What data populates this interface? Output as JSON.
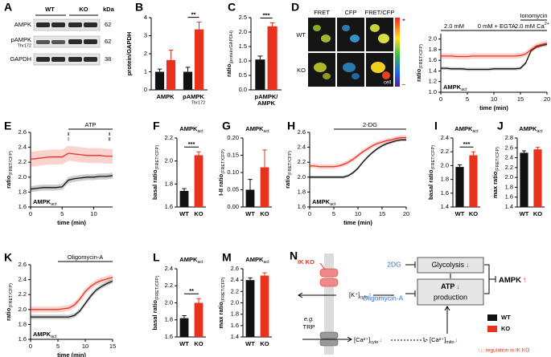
{
  "blot": {
    "panel": "A",
    "groups": [
      "WT",
      "KO"
    ],
    "unit": "kDa",
    "rows": [
      {
        "label": "AMPK",
        "kda": 62
      },
      {
        "label": "pAMPK",
        "sub": "Thr172",
        "kda": 62
      },
      {
        "label": "GAPDH",
        "kda": 38
      }
    ]
  },
  "images": {
    "panel": "D",
    "columns": [
      "FRET",
      "CFP",
      "FRET/CFP"
    ],
    "rows": [
      "WT",
      "KO"
    ],
    "scale": [
      "+",
      "–"
    ],
    "note": "cell"
  },
  "chart_data": [
    {
      "type": "bar",
      "panel": "B",
      "ylabel": "protein/GAPDH",
      "categories": [
        "AMPK",
        "pAMPK"
      ],
      "category_sub": {
        "1": "Thr172"
      },
      "series": [
        {
          "color": "#111111",
          "values": [
            1.0,
            1.0
          ],
          "errors": [
            0.15,
            0.25
          ]
        },
        {
          "color": "#e8321e",
          "values": [
            1.65,
            3.35
          ],
          "errors": [
            0.55,
            0.4
          ]
        }
      ],
      "significance": {
        "1": "**"
      },
      "ylim": [
        0,
        4
      ],
      "yticks": [
        0,
        1,
        2,
        3,
        4
      ]
    },
    {
      "type": "bar",
      "panel": "C",
      "ylabel": "ratio",
      "ylabel_sub": "(protein/GAPDH)",
      "categories": [
        "pAMPK/ AMPK"
      ],
      "series": [
        {
          "color": "#111111",
          "values": [
            1.05
          ],
          "errors": [
            0.12
          ]
        },
        {
          "color": "#e8321e",
          "values": [
            2.2
          ],
          "errors": [
            0.12
          ]
        }
      ],
      "significance": {
        "0": "***"
      },
      "ylim": [
        0,
        2.5
      ],
      "yticks": [
        {
          "value": 0,
          "label": "0.0"
        },
        0.5,
        {
          "value": 1,
          "label": "1.0"
        },
        1.5,
        {
          "value": 2,
          "label": "2.0"
        },
        2.5
      ]
    },
    {
      "type": "line",
      "ylabel": "ratio",
      "ylabel_sub": "(FRET/CFP)",
      "xlabel": "time (min)",
      "tag": "AMPK",
      "tag_sub": "act",
      "x": [
        0,
        1,
        2,
        3,
        4,
        5,
        6,
        7,
        8,
        9,
        10,
        11,
        12,
        13,
        14,
        15,
        16,
        17,
        18,
        19,
        20
      ],
      "series": [
        {
          "color": "#111111",
          "values": [
            1.45,
            1.45,
            1.44,
            1.44,
            1.44,
            1.43,
            1.43,
            1.43,
            1.43,
            1.43,
            1.44,
            1.44,
            1.44,
            1.44,
            1.44,
            1.45,
            1.55,
            1.78,
            1.85,
            1.88,
            1.9
          ],
          "errors": [
            0.03,
            0.03,
            0.03,
            0.03,
            0.03,
            0.03,
            0.03,
            0.03,
            0.03,
            0.03,
            0.03,
            0.03,
            0.03,
            0.03,
            0.03,
            0.03,
            0.03,
            0.03,
            0.03,
            0.03,
            0.03
          ]
        },
        {
          "color": "#e8321e",
          "values": [
            1.68,
            1.68,
            1.68,
            1.67,
            1.67,
            1.67,
            1.68,
            1.68,
            1.68,
            1.68,
            1.68,
            1.68,
            1.68,
            1.68,
            1.68,
            1.69,
            1.72,
            1.8,
            1.87,
            1.9,
            1.92
          ],
          "errors": [
            0.05,
            0.05,
            0.05,
            0.05,
            0.05,
            0.05,
            0.05,
            0.05,
            0.05,
            0.05,
            0.05,
            0.05,
            0.05,
            0.05,
            0.05,
            0.05,
            0.05,
            0.05,
            0.05,
            0.05,
            0.05
          ]
        }
      ],
      "annotations": [
        {
          "text": "2.0 mM",
          "start": 0,
          "end": 5
        },
        {
          "text": "0 mM + EGTA",
          "start": 5,
          "end": 16
        },
        {
          "text": "Ionomycin",
          "start": 15,
          "end": 20
        },
        {
          "text": "2.0 mM Ca",
          "sup": "2+",
          "start": 16,
          "end": 20
        }
      ],
      "xlim": [
        0,
        20
      ],
      "xticks": [
        0,
        5,
        10,
        15,
        20
      ],
      "ylim": [
        1,
        2.1
      ],
      "yticks": [
        {
          "value": 1,
          "label": "1.0"
        },
        1.2,
        1.4,
        1.6,
        1.8,
        {
          "value": 2,
          "label": "2.0"
        }
      ]
    },
    {
      "type": "line",
      "panel": "E",
      "ylabel": "ratio",
      "ylabel_sub": "(FRET/CFP)",
      "xlabel": "time (min)",
      "tag": "AMPK",
      "tag_sub": "act",
      "x": [
        0,
        1,
        2,
        3,
        4,
        5,
        6,
        7,
        8,
        9,
        10,
        11,
        12,
        13
      ],
      "series": [
        {
          "color": "#111111",
          "values": [
            1.84,
            1.85,
            1.86,
            1.86,
            1.86,
            1.87,
            1.96,
            1.98,
            1.99,
            2.0,
            2.0,
            2.01,
            2.01,
            2.02
          ],
          "errors": [
            0.04,
            0.04,
            0.04,
            0.04,
            0.04,
            0.04,
            0.04,
            0.04,
            0.04,
            0.04,
            0.04,
            0.04,
            0.04,
            0.04
          ]
        },
        {
          "color": "#e8321e",
          "values": [
            2.24,
            2.25,
            2.26,
            2.27,
            2.27,
            2.27,
            2.32,
            2.31,
            2.3,
            2.29,
            2.29,
            2.29,
            2.28,
            2.28
          ],
          "errors": [
            0.1,
            0.1,
            0.1,
            0.1,
            0.1,
            0.1,
            0.1,
            0.1,
            0.1,
            0.1,
            0.1,
            0.1,
            0.1,
            0.1
          ]
        }
      ],
      "annotations": [
        {
          "text": "ATP",
          "start": 6,
          "end": 13,
          "marks": [
            {
              "text": "I",
              "x": 6
            },
            {
              "text": "II",
              "x": 12.5
            }
          ]
        }
      ],
      "xlim": [
        0,
        13
      ],
      "xticks": [
        0,
        5,
        10
      ],
      "ylim": [
        1.6,
        2.6
      ],
      "yticks": [
        1.6,
        1.8,
        {
          "value": 2,
          "label": "2.0"
        },
        2.2,
        2.4,
        2.6
      ]
    },
    {
      "type": "bar",
      "panel": "F",
      "tag": "AMPK",
      "tag_sub": "act",
      "ylabel": "basal ratio",
      "ylabel_sub": "(FRET/CFP)",
      "categories": [
        "WT",
        "KO"
      ],
      "series": [
        {
          "colors": [
            "#111111",
            "#e8321e"
          ],
          "values": [
            1.74,
            2.05
          ],
          "errors": [
            0.02,
            0.03
          ]
        }
      ],
      "significance": "***",
      "ylim": [
        1.6,
        2.2
      ],
      "yticks": [
        1.6,
        1.8,
        {
          "value": 2,
          "label": "2.0"
        },
        2.2
      ]
    },
    {
      "type": "bar",
      "panel": "G",
      "tag": "AMPK",
      "tag_sub": "act",
      "ylabel": "I-II ratio",
      "ylabel_sub": "(FRET/CFP)",
      "categories": [
        "WT",
        "KO"
      ],
      "series": [
        {
          "colors": [
            "#111111",
            "#e8321e"
          ],
          "values": [
            0.05,
            0.115
          ],
          "errors": [
            0.03,
            0.05
          ]
        }
      ],
      "ylim": [
        0,
        0.2
      ],
      "yticks": [
        {
          "value": 0,
          "label": "0.00"
        },
        0.05,
        {
          "value": 0.1,
          "label": "0.10"
        },
        0.15,
        {
          "value": 0.2,
          "label": "0.20"
        }
      ]
    },
    {
      "type": "line",
      "panel": "H",
      "ylabel": "ratio",
      "ylabel_sub": "(FRET/CFP)",
      "xlabel": "time (min)",
      "tag": "AMPK",
      "tag_sub": "act",
      "x": [
        0,
        1,
        2,
        3,
        4,
        5,
        6,
        7,
        8,
        9,
        10,
        11,
        12,
        13,
        14,
        15,
        16,
        17,
        18,
        19,
        20
      ],
      "series": [
        {
          "color": "#111111",
          "values": [
            2.0,
            2.0,
            2.0,
            2.0,
            2.0,
            2.0,
            2.0,
            2.0,
            2.02,
            2.06,
            2.12,
            2.2,
            2.27,
            2.33,
            2.38,
            2.42,
            2.45,
            2.47,
            2.49,
            2.5,
            2.5
          ],
          "errors": [
            0.02,
            0.02,
            0.02,
            0.02,
            0.02,
            0.02,
            0.02,
            0.02,
            0.02,
            0.02,
            0.02,
            0.02,
            0.02,
            0.02,
            0.02,
            0.02,
            0.02,
            0.02,
            0.02,
            0.02,
            0.02
          ]
        },
        {
          "color": "#e8321e",
          "values": [
            2.15,
            2.15,
            2.14,
            2.14,
            2.14,
            2.14,
            2.15,
            2.17,
            2.2,
            2.24,
            2.29,
            2.34,
            2.38,
            2.42,
            2.45,
            2.47,
            2.49,
            2.5,
            2.52,
            2.53,
            2.53
          ],
          "errors": [
            0.03,
            0.03,
            0.03,
            0.03,
            0.03,
            0.03,
            0.03,
            0.03,
            0.03,
            0.03,
            0.03,
            0.03,
            0.03,
            0.03,
            0.03,
            0.03,
            0.03,
            0.03,
            0.03,
            0.03,
            0.03
          ]
        }
      ],
      "annotations": [
        {
          "text": "2-DG",
          "start": 5,
          "end": 20
        }
      ],
      "xlim": [
        0,
        20
      ],
      "xticks": [
        0,
        5,
        10,
        15,
        20
      ],
      "ylim": [
        1.6,
        2.6
      ],
      "yticks": [
        1.6,
        1.8,
        {
          "value": 2,
          "label": "2.0"
        },
        2.2,
        2.4,
        2.6
      ]
    },
    {
      "type": "bar",
      "panel": "I",
      "tag": "AMPK",
      "tag_sub": "act",
      "ylabel": "basal ratio",
      "ylabel_sub": "(FRET/CFP)",
      "categories": [
        "WT",
        "KO"
      ],
      "series": [
        {
          "colors": [
            "#111111",
            "#e8321e"
          ],
          "values": [
            1.98,
            2.15
          ],
          "errors": [
            0.03,
            0.05
          ]
        }
      ],
      "significance": "***",
      "ylim": [
        1.4,
        2.4
      ],
      "yticks": [
        1.4,
        1.6,
        1.8,
        {
          "value": 2,
          "label": "2.0"
        },
        2.2,
        2.4
      ]
    },
    {
      "type": "bar",
      "panel": "J",
      "tag": "AMPK",
      "tag_sub": "act",
      "ylabel": "max ratio",
      "ylabel_sub": "(FRET/CFP)",
      "categories": [
        "WT",
        "KO"
      ],
      "series": [
        {
          "colors": [
            "#111111",
            "#e8321e"
          ],
          "values": [
            2.5,
            2.57
          ],
          "errors": [
            0.04,
            0.04
          ]
        }
      ],
      "ylim": [
        1.4,
        2.8
      ],
      "yticks": [
        1.4,
        1.6,
        1.8,
        {
          "value": 2,
          "label": "2.0"
        },
        2.2,
        2.4,
        2.6,
        2.8
      ]
    },
    {
      "type": "line",
      "panel": "K",
      "ylabel": "ratio",
      "ylabel_sub": "(FRET/CFP)",
      "xlabel": "time (min)",
      "tag": "AMPK",
      "tag_sub": "act",
      "x": [
        0,
        1,
        2,
        3,
        4,
        5,
        6,
        7,
        8,
        9,
        10,
        11,
        12,
        13,
        14,
        15
      ],
      "series": [
        {
          "color": "#111111",
          "values": [
            1.9,
            1.9,
            1.9,
            1.9,
            1.9,
            1.9,
            1.9,
            1.9,
            1.92,
            1.98,
            2.08,
            2.18,
            2.26,
            2.31,
            2.35,
            2.38
          ],
          "errors": [
            0.03,
            0.03,
            0.03,
            0.03,
            0.03,
            0.03,
            0.03,
            0.03,
            0.03,
            0.03,
            0.03,
            0.03,
            0.03,
            0.03,
            0.03,
            0.03
          ]
        },
        {
          "color": "#e8321e",
          "values": [
            2.0,
            2.0,
            2.0,
            2.0,
            2.0,
            2.0,
            2.01,
            2.02,
            2.06,
            2.14,
            2.24,
            2.31,
            2.36,
            2.39,
            2.41,
            2.43
          ],
          "errors": [
            0.04,
            0.04,
            0.04,
            0.04,
            0.04,
            0.04,
            0.04,
            0.04,
            0.04,
            0.04,
            0.04,
            0.04,
            0.04,
            0.04,
            0.04,
            0.04
          ]
        }
      ],
      "annotations": [
        {
          "text": "Oligomycin-A",
          "start": 5,
          "end": 15
        }
      ],
      "xlim": [
        0,
        15
      ],
      "xticks": [
        0,
        5,
        10,
        15
      ],
      "ylim": [
        1.6,
        2.6
      ],
      "yticks": [
        1.6,
        1.8,
        {
          "value": 2,
          "label": "2.0"
        },
        2.2,
        2.4,
        2.6
      ]
    },
    {
      "type": "bar",
      "panel": "L",
      "tag": "AMPK",
      "tag_sub": "act",
      "ylabel": "basal ratio",
      "ylabel_sub": "(FRET/CFP)",
      "categories": [
        "WT",
        "KO"
      ],
      "series": [
        {
          "colors": [
            "#111111",
            "#e8321e"
          ],
          "values": [
            1.82,
            2.0
          ],
          "errors": [
            0.03,
            0.05
          ]
        }
      ],
      "significance": "**",
      "ylim": [
        1.6,
        2.4
      ],
      "yticks": [
        1.6,
        1.8,
        {
          "value": 2,
          "label": "2.0"
        },
        2.2,
        2.4
      ]
    },
    {
      "type": "bar",
      "panel": "M",
      "tag": "AMPK",
      "tag_sub": "act",
      "ylabel": "max ratio",
      "ylabel_sub": "(FRET/CFP)",
      "categories": [
        "WT",
        "KO"
      ],
      "series": [
        {
          "colors": [
            "#111111",
            "#e8321e"
          ],
          "values": [
            2.4,
            2.48
          ],
          "errors": [
            0.04,
            0.05
          ]
        }
      ],
      "ylim": [
        1.4,
        2.6
      ],
      "yticks": [
        1.4,
        1.6,
        1.8,
        {
          "value": 2,
          "label": "2.0"
        },
        2.2,
        2.4,
        2.6
      ]
    }
  ],
  "diagram": {
    "panel": "N",
    "knockout": "IK KO",
    "inhibitor_glycolysis": "2DG",
    "glycolysis": {
      "label": "Glycolysis",
      "change": "↓"
    },
    "atp": {
      "label": "ATP",
      "change": "↓",
      "label2": "production"
    },
    "ampk": {
      "label": "AMPK",
      "change": "↑"
    },
    "k_cyto": {
      "label": "[K⁺]",
      "sub": "cyto",
      "change": "↑"
    },
    "inhibitor_atp": "Oligomycin-A",
    "channel": {
      "prefix": "e.g.",
      "label": "TRP"
    },
    "ca_cyto": {
      "label": "[Ca²⁺]",
      "sub": "cyto",
      "change": "↓"
    },
    "ca_mito": {
      "label": "[Ca²⁺]",
      "sub": "mito",
      "change": "↓"
    },
    "legend": [
      {
        "label": "WT",
        "color": "#111111"
      },
      {
        "label": "KO",
        "color": "#e8321e"
      }
    ],
    "note": "↑↓: regulation in IK KO"
  }
}
